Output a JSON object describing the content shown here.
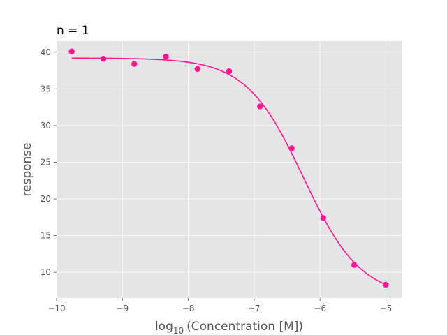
{
  "chart_data": {
    "type": "scatter",
    "title": "n = 1",
    "xlabel": {
      "prefix": "log",
      "subscript": "10",
      "suffix": "(Concentration [M])"
    },
    "ylabel": "response",
    "xlim": [
      -10,
      -4.75
    ],
    "ylim": [
      6.5,
      41.5
    ],
    "x_ticks": [
      -10,
      -9,
      -8,
      -7,
      -6,
      -5
    ],
    "x_tick_labels": [
      "−10",
      "−9",
      "−8",
      "−7",
      "−6",
      "−5"
    ],
    "y_ticks": [
      10,
      15,
      20,
      25,
      30,
      35,
      40
    ],
    "y_tick_labels": [
      "10",
      "15",
      "20",
      "25",
      "30",
      "35",
      "40"
    ],
    "grid": true,
    "series": [
      {
        "type": "scatter",
        "x": [
          -9.77,
          -9.29,
          -8.82,
          -8.34,
          -7.86,
          -7.38,
          -6.91,
          -6.43,
          -5.95,
          -5.48,
          -5.0
        ],
        "y": [
          40.1,
          39.1,
          38.4,
          39.4,
          37.7,
          37.4,
          32.6,
          26.9,
          17.4,
          11.0,
          8.3
        ]
      },
      {
        "type": "line",
        "fit": "four-parameter logistic",
        "top": 39.2,
        "bottom": 6.6,
        "log_ic50": -6.25,
        "hill_slope": -1.0,
        "x_range": [
          -9.77,
          -5.0
        ]
      }
    ],
    "colors": {
      "series": "#ff1493",
      "plot_background": "#e5e5e5",
      "grid": "#ffffff",
      "axis_text": "#555555"
    }
  }
}
